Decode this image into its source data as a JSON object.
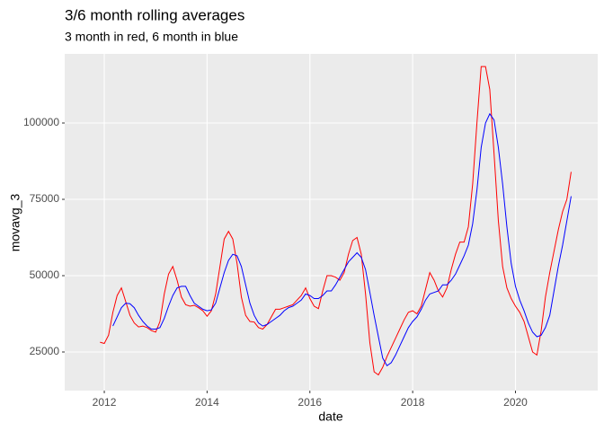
{
  "chart_data": {
    "type": "line",
    "title": "3/6 month rolling averages",
    "subtitle": "3 month in red, 6 month in blue",
    "x_label": "date",
    "y_label": "movavg_3",
    "x": [
      2011.917,
      2012,
      2012.083,
      2012.167,
      2012.25,
      2012.333,
      2012.417,
      2012.5,
      2012.583,
      2012.667,
      2012.75,
      2012.833,
      2012.917,
      2013,
      2013.083,
      2013.167,
      2013.25,
      2013.333,
      2013.417,
      2013.5,
      2013.583,
      2013.667,
      2013.75,
      2013.833,
      2013.917,
      2014,
      2014.083,
      2014.167,
      2014.25,
      2014.333,
      2014.417,
      2014.5,
      2014.583,
      2014.667,
      2014.75,
      2014.833,
      2014.917,
      2015,
      2015.083,
      2015.167,
      2015.25,
      2015.333,
      2015.417,
      2015.5,
      2015.583,
      2015.667,
      2015.75,
      2015.833,
      2015.917,
      2016,
      2016.083,
      2016.167,
      2016.25,
      2016.333,
      2016.417,
      2016.5,
      2016.583,
      2016.667,
      2016.75,
      2016.833,
      2016.917,
      2017,
      2017.083,
      2017.167,
      2017.25,
      2017.333,
      2017.417,
      2017.5,
      2017.583,
      2017.667,
      2017.75,
      2017.833,
      2017.917,
      2018,
      2018.083,
      2018.167,
      2018.25,
      2018.333,
      2018.417,
      2018.5,
      2018.583,
      2018.667,
      2018.75,
      2018.833,
      2018.917,
      2019,
      2019.083,
      2019.167,
      2019.25,
      2019.333,
      2019.417,
      2019.5,
      2019.583,
      2019.667,
      2019.75,
      2019.833,
      2019.917,
      2020,
      2020.083,
      2020.167,
      2020.25,
      2020.333,
      2020.417,
      2020.5,
      2020.583,
      2020.667,
      2020.75,
      2020.833,
      2020.917,
      2021,
      2021.083
    ],
    "series": [
      {
        "name": "3 month",
        "color": "#ff0000",
        "values": [
          28200,
          27800,
          30500,
          38000,
          43500,
          46000,
          41500,
          37000,
          34500,
          33200,
          33500,
          33000,
          32000,
          31500,
          35000,
          44000,
          50500,
          53000,
          48500,
          43000,
          40500,
          40000,
          40300,
          39500,
          38500,
          36700,
          38500,
          44000,
          53000,
          62000,
          64500,
          62000,
          54000,
          43000,
          37000,
          35000,
          34800,
          33000,
          32500,
          34000,
          36500,
          39000,
          39000,
          39500,
          40000,
          40500,
          42000,
          43500,
          46000,
          42500,
          40000,
          39200,
          45000,
          50000,
          50000,
          49500,
          48500,
          51000,
          57000,
          61500,
          62500,
          57000,
          44000,
          28000,
          18500,
          17500,
          20000,
          23500,
          26500,
          29500,
          32500,
          35500,
          38000,
          38500,
          37500,
          40000,
          45500,
          51000,
          48500,
          45000,
          43000,
          46000,
          52000,
          57000,
          61000,
          61000,
          66000,
          80000,
          100000,
          118500,
          118500,
          111000,
          90000,
          68000,
          53000,
          46000,
          42500,
          40000,
          38000,
          35000,
          30000,
          25000,
          24000,
          32000,
          43000,
          51000,
          58000,
          65000,
          71000,
          75000,
          84000
        ]
      },
      {
        "name": "6 month",
        "color": "#0000ff",
        "values": [
          null,
          null,
          null,
          33500,
          36500,
          39500,
          41000,
          40800,
          39500,
          37000,
          35000,
          33500,
          32500,
          32500,
          33000,
          36000,
          40000,
          43500,
          46000,
          46500,
          46500,
          43500,
          41000,
          40000,
          39000,
          38500,
          38800,
          41000,
          46000,
          51000,
          55000,
          57000,
          56500,
          53000,
          47000,
          41000,
          37000,
          34500,
          33500,
          34000,
          35000,
          36000,
          37000,
          38500,
          39500,
          40000,
          41000,
          42000,
          44000,
          43500,
          42500,
          42500,
          43500,
          45000,
          45000,
          47000,
          49500,
          52000,
          54500,
          56000,
          57500,
          56000,
          52000,
          44500,
          37000,
          30000,
          23000,
          20500,
          21500,
          24000,
          27000,
          30000,
          33000,
          35000,
          36500,
          39000,
          42000,
          44000,
          44500,
          45000,
          47000,
          47000,
          48500,
          50500,
          53500,
          56500,
          60000,
          67000,
          78000,
          92000,
          100000,
          103000,
          101000,
          92000,
          80000,
          66000,
          54000,
          46500,
          42000,
          38500,
          34500,
          31500,
          30000,
          30500,
          33000,
          37000,
          45000,
          53000,
          60000,
          68000,
          76000
        ]
      }
    ],
    "xlim": [
      2011.23,
      2021.6
    ],
    "xticks": [
      2012,
      2014,
      2016,
      2018,
      2020
    ],
    "ylim": [
      12353,
      122647
    ],
    "yticks": [
      25000,
      50000,
      75000,
      100000
    ],
    "grid": true
  }
}
